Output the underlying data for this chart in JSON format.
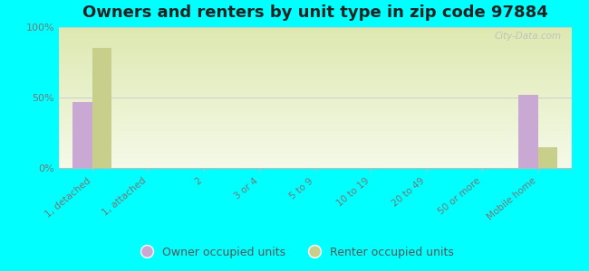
{
  "title": "Owners and renters by unit type in zip code 97884",
  "categories": [
    "1, detached",
    "1, attached",
    "2",
    "3 or 4",
    "5 to 9",
    "10 to 19",
    "20 to 49",
    "50 or more",
    "Mobile home"
  ],
  "owner_values": [
    47,
    0,
    0,
    0,
    0,
    0,
    0,
    0,
    52
  ],
  "renter_values": [
    85,
    0,
    0,
    0,
    0,
    0,
    0,
    0,
    15
  ],
  "owner_color": "#c9a8d4",
  "renter_color": "#c8cf8a",
  "background_color": "#00ffff",
  "plot_bg_top_color": "#dde8b0",
  "plot_bg_bottom_color": "#f5f9e8",
  "ylim": [
    0,
    100
  ],
  "yticks": [
    0,
    50,
    100
  ],
  "ytick_labels": [
    "0%",
    "50%",
    "100%"
  ],
  "bar_width": 0.35,
  "legend_owner": "Owner occupied units",
  "legend_renter": "Renter occupied units",
  "title_fontsize": 13,
  "watermark": "City-Data.com",
  "tick_label_color": "#777777",
  "spine_color": "#bbbbbb"
}
